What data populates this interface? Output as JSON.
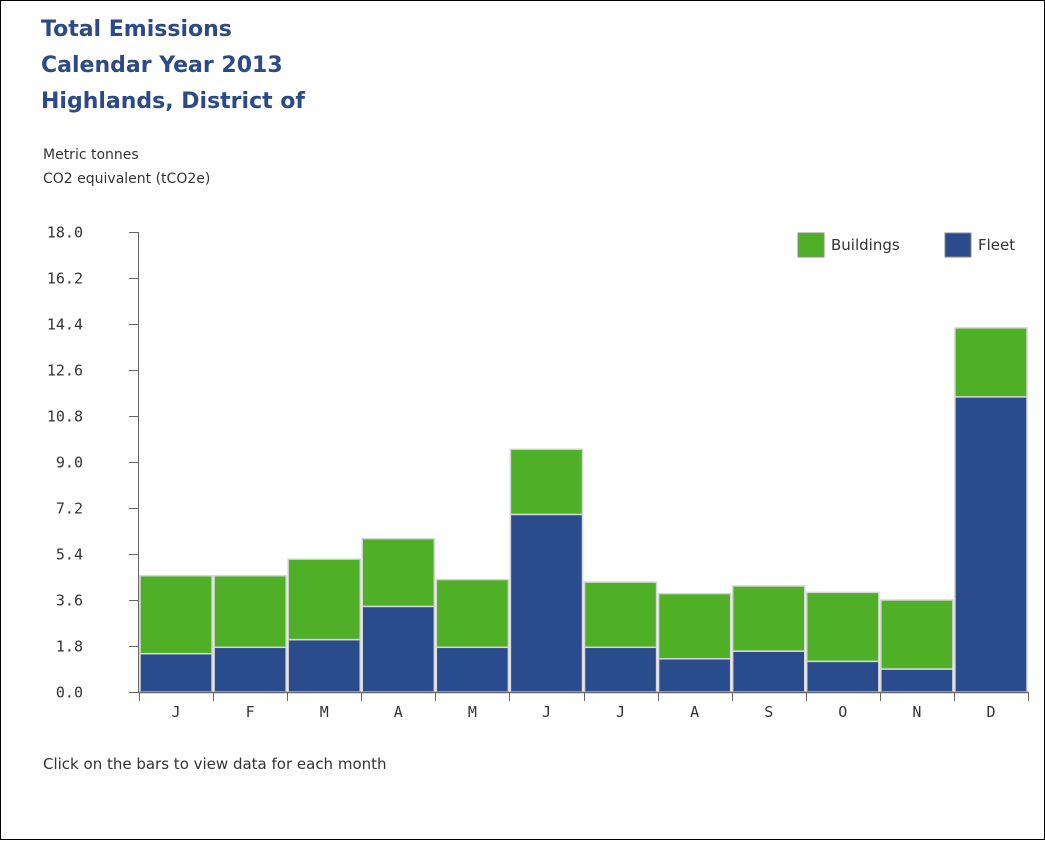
{
  "header": {
    "title_line1": "Total Emissions",
    "title_line2": "Calendar Year 2013",
    "title_line3": "Highlands, District of"
  },
  "units": {
    "line1": "Metric tonnes",
    "line2": "CO2 equivalent (tCO2e)"
  },
  "footnote": "Click on the bars to view data for each month",
  "colors": {
    "buildings": "#4fb027",
    "fleet": "#2b4c8c",
    "title": "#2b4a86"
  },
  "chart_data": {
    "type": "bar",
    "stacked": true,
    "categories": [
      "J",
      "F",
      "M",
      "A",
      "M",
      "J",
      "J",
      "A",
      "S",
      "O",
      "N",
      "D"
    ],
    "series": [
      {
        "name": "Fleet",
        "values": [
          1.5,
          1.75,
          2.05,
          3.35,
          1.75,
          6.95,
          1.75,
          1.3,
          1.6,
          1.2,
          0.9,
          11.55
        ]
      },
      {
        "name": "Buildings",
        "values": [
          3.05,
          2.8,
          3.15,
          2.65,
          2.65,
          2.55,
          2.55,
          2.55,
          2.55,
          2.7,
          2.7,
          2.7
        ]
      }
    ],
    "y_ticks": [
      "18.0",
      "16.2",
      "14.4",
      "12.6",
      "10.8",
      "9.0",
      "7.2",
      "5.4",
      "3.6",
      "1.8",
      "0.0"
    ],
    "ylim": [
      0,
      18
    ],
    "legend_order": [
      "Buildings",
      "Fleet"
    ],
    "legend_position": "top-right",
    "grid": false
  }
}
